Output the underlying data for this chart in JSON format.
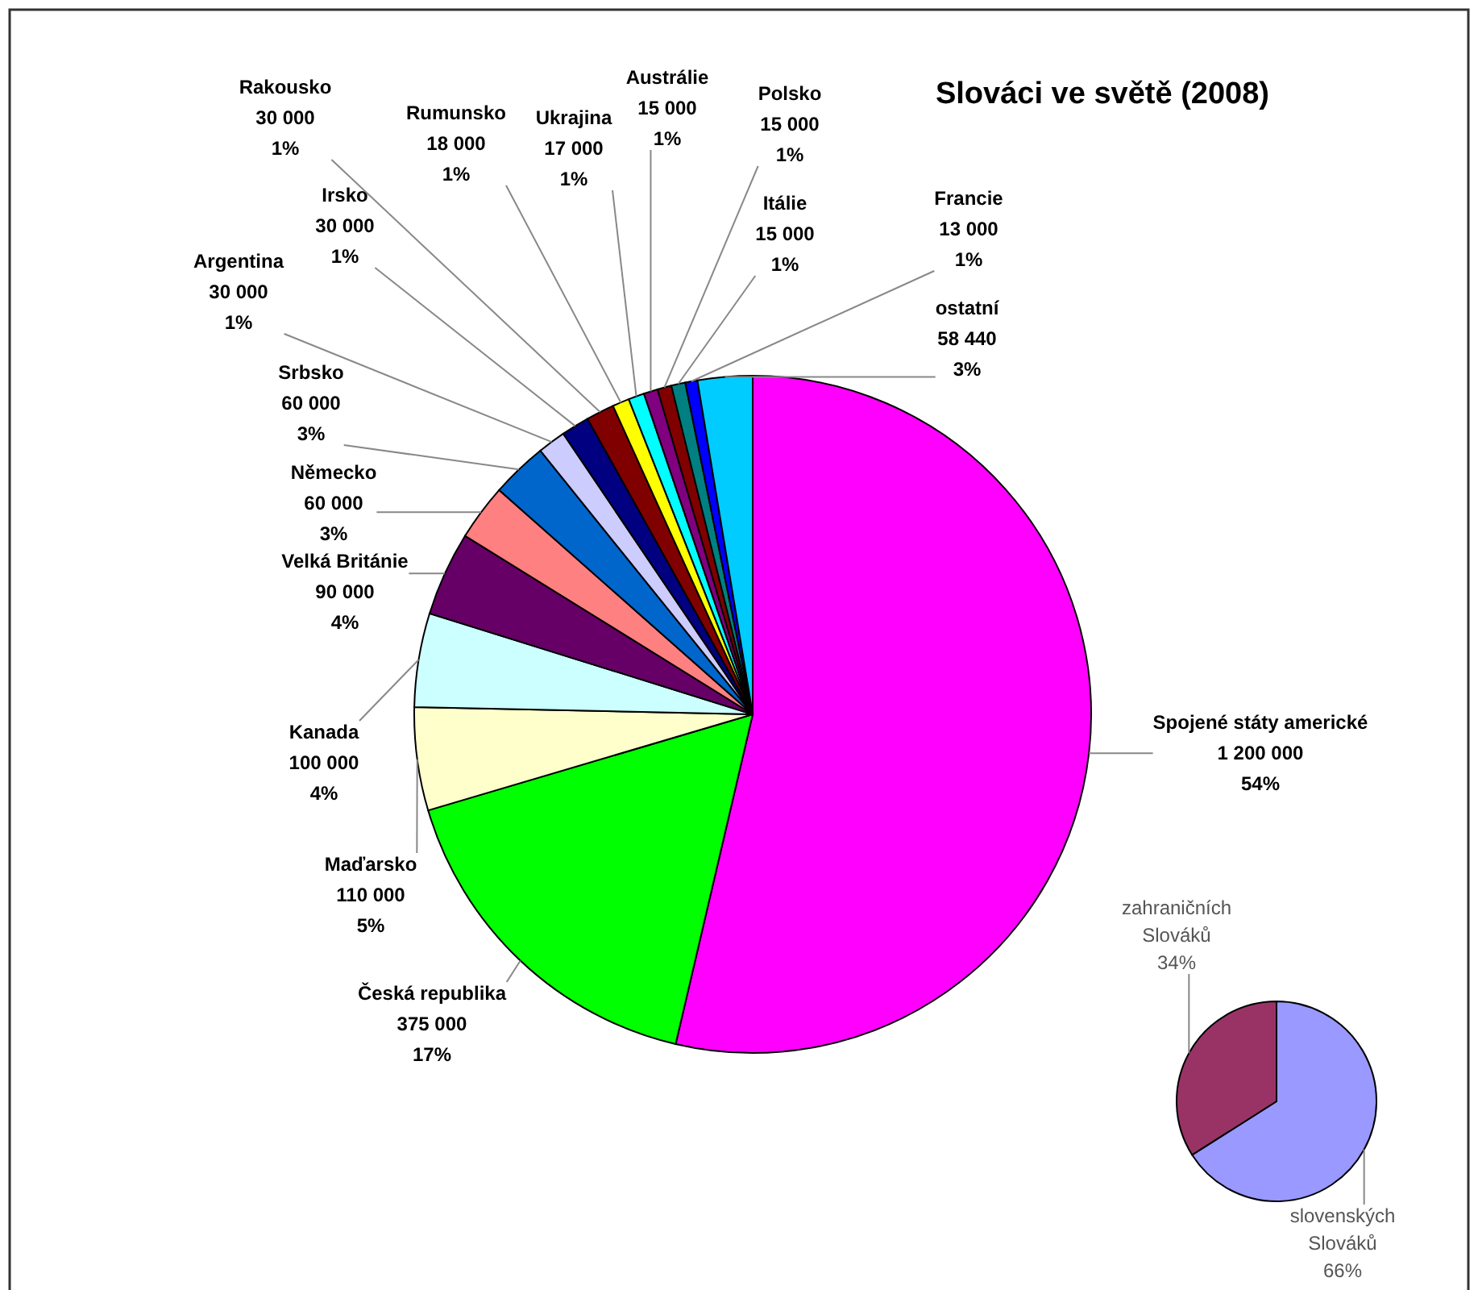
{
  "chart_data": [
    {
      "type": "pie",
      "title": "Slováci ve světě (2008)",
      "categories": [
        "Spojené státy americké",
        "Česká republika",
        "Maďarsko",
        "Kanada",
        "Velká Británie",
        "Německo",
        "Srbsko",
        "Argentina",
        "Irsko",
        "Rakousko",
        "Rumunsko",
        "Ukrajina",
        "Austrálie",
        "Polsko",
        "Itálie",
        "Francie",
        "ostatní"
      ],
      "values": [
        1200000,
        375000,
        110000,
        100000,
        90000,
        60000,
        60000,
        30000,
        30000,
        30000,
        18000,
        17000,
        15000,
        15000,
        15000,
        13000,
        58440
      ],
      "colors": [
        "#ff00ff",
        "#00ff00",
        "#ffffcc",
        "#ccffff",
        "#660066",
        "#ff8080",
        "#0066cc",
        "#ccccff",
        "#000080",
        "#800000",
        "#ffff00",
        "#00ffff",
        "#800080",
        "#800000",
        "#008080",
        "#0000ff",
        "#00ccff"
      ],
      "value_labels": [
        "1 200 000\n54%",
        "375 000\n17%",
        "110 000\n5%",
        "100 000\n4%",
        "90 000\n4%",
        "60 000\n3%",
        "60 000\n3%",
        "30 000\n1%",
        "30 000\n1%",
        "30 000\n1%",
        "18 000\n1%",
        "17 000\n1%",
        "15 000\n1%",
        "15 000\n1%",
        "15 000\n1%",
        "13 000\n1%",
        "58 440\n3%"
      ]
    },
    {
      "type": "pie",
      "categories": [
        "slovenských Slováků",
        "zahraničních Slováků"
      ],
      "values": [
        66,
        34
      ],
      "colors": [
        "#9999ff",
        "#993366"
      ],
      "value_labels": [
        "66%",
        "34%"
      ]
    }
  ]
}
